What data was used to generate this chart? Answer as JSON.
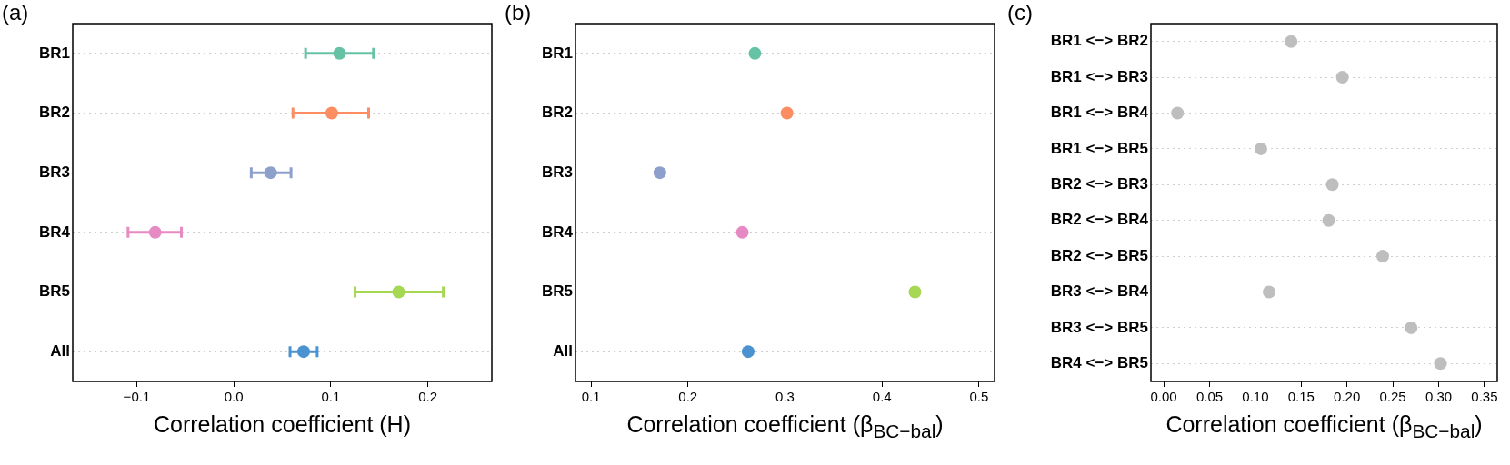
{
  "chart_data": [
    {
      "type": "scatter",
      "orientation": "horizontal",
      "title": "(a)",
      "xlabel": "Correlation coefficient (H)",
      "categories": [
        "BR1",
        "BR2",
        "BR3",
        "BR4",
        "BR5",
        "All"
      ],
      "values": [
        0.109,
        0.101,
        0.038,
        -0.081,
        0.17,
        0.072
      ],
      "errors": [
        [
          0.074,
          0.144
        ],
        [
          0.061,
          0.139
        ],
        [
          0.018,
          0.059
        ],
        [
          -0.109,
          -0.054
        ],
        [
          0.125,
          0.216
        ],
        [
          0.058,
          0.086
        ]
      ],
      "colors": [
        "#66c2a5",
        "#fc8d62",
        "#8da0cb",
        "#e78ac3",
        "#a6d854",
        "#4b92d0"
      ],
      "xlim": [
        -0.166,
        0.266
      ],
      "xticks": [
        {
          "value": -0.1,
          "label": "−0.1"
        },
        {
          "value": 0,
          "label": "0.0"
        },
        {
          "value": 0.1,
          "label": "0.1"
        },
        {
          "value": 0.2,
          "label": "0.2"
        }
      ],
      "grid": "y",
      "marker": "circle"
    },
    {
      "type": "scatter",
      "orientation": "horizontal",
      "title": "(b)",
      "xlabel": "Correlation coefficient (β$_{BC−bal}$)",
      "categories": [
        "BR1",
        "BR2",
        "BR3",
        "BR4",
        "BR5",
        "All"
      ],
      "values": [
        0.269,
        0.302,
        0.171,
        0.256,
        0.434,
        0.262
      ],
      "colors": [
        "#66c2a5",
        "#fc8d62",
        "#8da0cb",
        "#e78ac3",
        "#a6d854",
        "#4b92d0"
      ],
      "xlim": [
        0.084,
        0.516
      ],
      "xticks": [
        0.1,
        0.2,
        0.3,
        0.4,
        0.5
      ],
      "grid": "y",
      "marker": "circle"
    },
    {
      "type": "scatter",
      "orientation": "horizontal",
      "title": "(c)",
      "xlabel": "Correlation coefficient (β$_{BC−bal}$)",
      "categories": [
        "BR1 <−> BR2",
        "BR1 <−> BR3",
        "BR1 <−> BR4",
        "BR1 <−> BR5",
        "BR2 <−> BR3",
        "BR2 <−> BR4",
        "BR2 <−> BR5",
        "BR3 <−> BR4",
        "BR3 <−> BR5",
        "BR4 <−> BR5"
      ],
      "values": [
        0.139,
        0.195,
        0.015,
        0.106,
        0.184,
        0.18,
        0.239,
        0.115,
        0.27,
        0.302
      ],
      "color": "#bebebe",
      "xlim": [
        -0.014,
        0.364
      ],
      "xticks": [
        {
          "value": 0,
          "label": "0.00"
        },
        {
          "value": 0.05,
          "label": "0.05"
        },
        {
          "value": 0.1,
          "label": "0.10"
        },
        {
          "value": 0.15,
          "label": "0.15"
        },
        {
          "value": 0.2,
          "label": "0.20"
        },
        {
          "value": 0.25,
          "label": "0.25"
        },
        {
          "value": 0.3,
          "label": "0.30"
        },
        {
          "value": 0.35,
          "label": "0.35"
        }
      ],
      "grid": "y",
      "marker": "circle"
    }
  ]
}
